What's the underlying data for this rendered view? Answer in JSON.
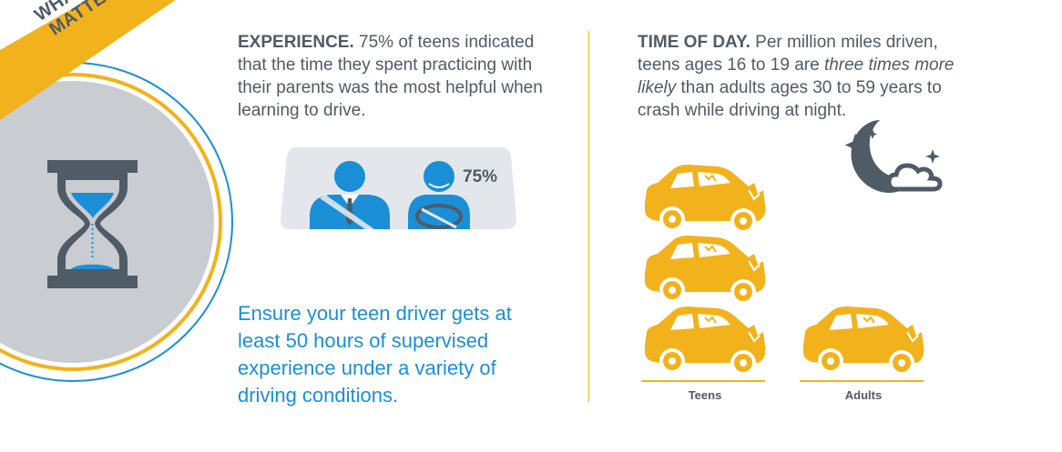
{
  "banner": {
    "line1": "WHAT ELSE",
    "line2": "MATTERS?"
  },
  "experience": {
    "lead": "EXPERIENCE.",
    "text": "75% of teens indicated that the time they spent practicing with their parents was the most helpful when learning to drive.",
    "percent_label": "75%"
  },
  "tip": "Ensure your teen driver gets at least 50 hours of supervised experience under a variety of driving conditions.",
  "time_of_day": {
    "lead": "TIME OF DAY.",
    "text_1": "Per million miles driven, teens ages 16 to 19 are",
    "text_em": "three times more likely",
    "text_2": "than adults ages 30 to 59 years to crash while driving at night."
  },
  "comparison": {
    "teens_label": "Teens",
    "adults_label": "Adults",
    "teens_crashes": 3,
    "adults_crashes": 1
  },
  "icons": [
    "hourglass-icon",
    "parent-driver-icon",
    "teen-driver-icon",
    "moon-icon",
    "star-icon",
    "cloud-icon",
    "crashed-car-icon"
  ],
  "colors": {
    "accent": "#f2b21b",
    "blue": "#1a8fd6",
    "slate": "#4f5b66",
    "gray": "#c9ccd0",
    "light": "#e3e7ec"
  }
}
